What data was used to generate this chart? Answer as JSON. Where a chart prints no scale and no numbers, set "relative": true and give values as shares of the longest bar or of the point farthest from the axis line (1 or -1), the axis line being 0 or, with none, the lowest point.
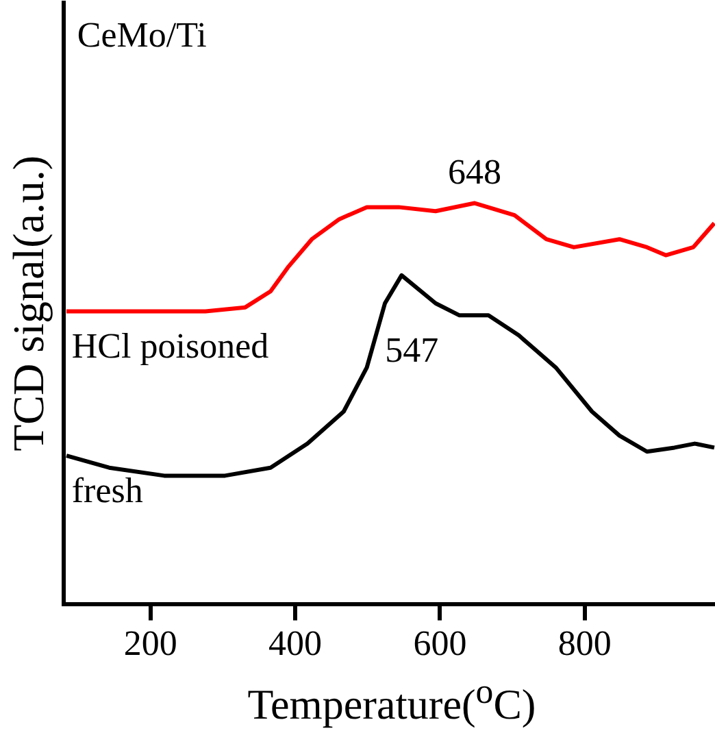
{
  "chart_data": {
    "type": "line",
    "xlabel": "Temperature($^{o}$C)",
    "ylabel": "TCD signal(a.u.)",
    "relative": true,
    "xlim": [
      80,
      980
    ],
    "xticks": [
      200,
      400,
      600,
      800
    ],
    "legend": false,
    "marker": "none",
    "line_style": "solid",
    "annotations": [
      "CeMo/Ti",
      {
        "text": "648",
        "x": 648,
        "y": 1.0
      },
      {
        "text": "547",
        "x": 547,
        "y": 0.82
      }
    ],
    "series": [
      {
        "name": "HCl poisoned",
        "color": "#ff0000",
        "x": [
          84,
          175,
          276,
          331,
          366,
          390,
          423,
          461,
          499,
          543,
          594,
          648,
          703,
          747,
          785,
          848,
          886,
          912,
          950,
          979
        ],
        "values": [
          0.73,
          0.73,
          0.73,
          0.74,
          0.78,
          0.84,
          0.91,
          0.96,
          0.99,
          0.99,
          0.98,
          1.0,
          0.97,
          0.91,
          0.89,
          0.91,
          0.89,
          0.87,
          0.89,
          0.95
        ]
      },
      {
        "name": "fresh",
        "color": "#000000",
        "x": [
          84,
          143,
          219,
          303,
          366,
          417,
          467,
          499,
          524,
          547,
          594,
          627,
          667,
          709,
          760,
          810,
          848,
          886,
          924,
          952,
          979
        ],
        "values": [
          0.37,
          0.34,
          0.32,
          0.32,
          0.34,
          0.4,
          0.48,
          0.59,
          0.75,
          0.82,
          0.75,
          0.72,
          0.72,
          0.67,
          0.59,
          0.48,
          0.42,
          0.38,
          0.39,
          0.4,
          0.39
        ]
      }
    ]
  }
}
